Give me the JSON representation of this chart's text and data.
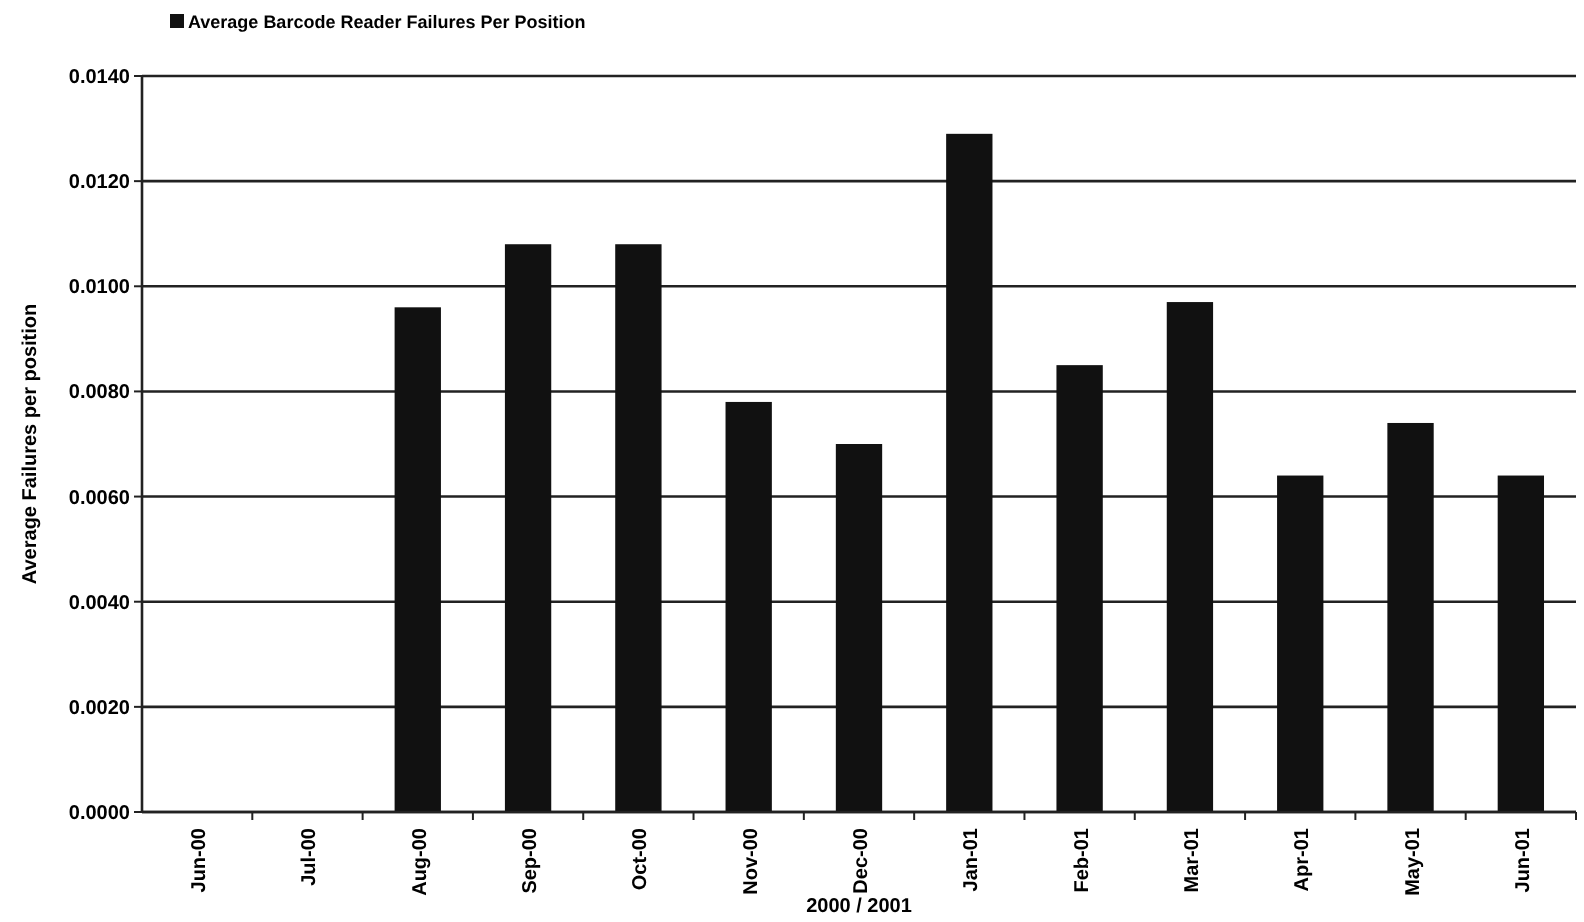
{
  "chart_data": {
    "type": "bar",
    "xlabel": "2000 / 2001",
    "ylabel": "Average Failures per position",
    "categories": [
      "Jun-00",
      "Jul-00",
      "Aug-00",
      "Sep-00",
      "Oct-00",
      "Nov-00",
      "Dec-00",
      "Jan-01",
      "Feb-01",
      "Mar-01",
      "Apr-01",
      "May-01",
      "Jun-01"
    ],
    "series": [
      {
        "name": "Average Barcode Reader Failures Per Position",
        "color": "#111111",
        "values": [
          null,
          null,
          0.0096,
          0.0108,
          0.0108,
          0.0078,
          0.007,
          0.0129,
          0.0085,
          0.0097,
          0.0064,
          0.0074,
          0.0064
        ]
      }
    ],
    "ylim": [
      0,
      0.014
    ],
    "yticks": [
      {
        "value": 0,
        "label": "0.0000"
      },
      {
        "value": 0.002,
        "label": "0.0020"
      },
      {
        "value": 0.004,
        "label": "0.0040"
      },
      {
        "value": 0.006,
        "label": "0.0060"
      },
      {
        "value": 0.008,
        "label": "0.0080"
      },
      {
        "value": 0.01,
        "label": "0.0100"
      },
      {
        "value": 0.012,
        "label": "0.0120"
      },
      {
        "value": 0.014,
        "label": "0.0140"
      }
    ],
    "grid": "y",
    "legend": "top"
  }
}
